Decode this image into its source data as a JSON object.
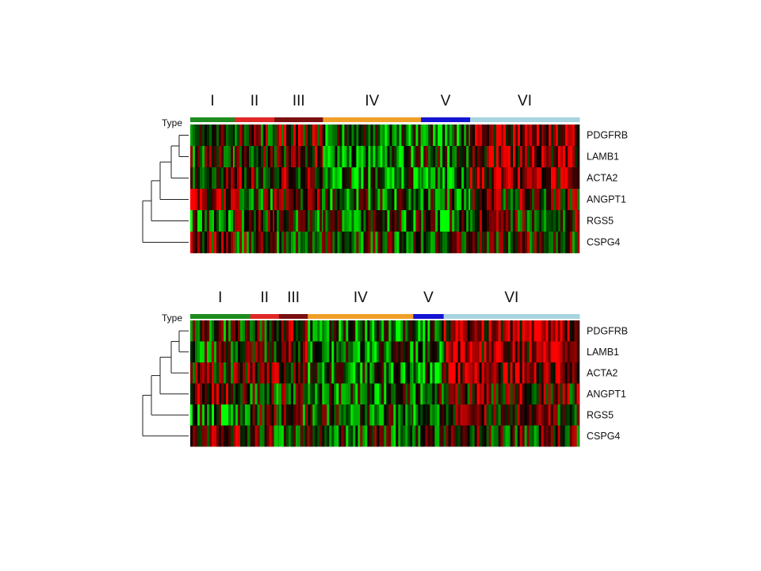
{
  "chart_data": [
    {
      "type": "heatmap",
      "type_label": "Type",
      "rows": [
        "PDGFRB",
        "LAMB1",
        "ACTA2",
        "ANGPT1",
        "RGS5",
        "CSPG4"
      ],
      "groups": [
        {
          "label": "I",
          "color": "#1e8c1e",
          "fraction": 0.114
        },
        {
          "label": "II",
          "color": "#e02828",
          "fraction": 0.102
        },
        {
          "label": "III",
          "color": "#7a1010",
          "fraction": 0.125
        },
        {
          "label": "IV",
          "color": "#f0a028",
          "fraction": 0.252
        },
        {
          "label": "V",
          "color": "#1414d2",
          "fraction": 0.126
        },
        {
          "label": "VI",
          "color": "#a8d4e0",
          "fraction": 0.281
        }
      ],
      "color_scale": {
        "low": "#00ff00",
        "mid": "#000000",
        "high": "#ff0000"
      },
      "dendrogram": "rows"
    },
    {
      "type": "heatmap",
      "type_label": "Type",
      "rows": [
        "PDGFRB",
        "LAMB1",
        "ACTA2",
        "ANGPT1",
        "RGS5",
        "CSPG4"
      ],
      "groups": [
        {
          "label": "I",
          "color": "#1e8c1e",
          "fraction": 0.154
        },
        {
          "label": "II",
          "color": "#e02828",
          "fraction": 0.074
        },
        {
          "label": "III",
          "color": "#7a1010",
          "fraction": 0.074
        },
        {
          "label": "IV",
          "color": "#f0a028",
          "fraction": 0.271
        },
        {
          "label": "V",
          "color": "#1414d2",
          "fraction": 0.078
        },
        {
          "label": "VI",
          "color": "#a8d4e0",
          "fraction": 0.349
        }
      ],
      "color_scale": {
        "low": "#00ff00",
        "mid": "#000000",
        "high": "#ff0000"
      },
      "dendrogram": "rows"
    }
  ]
}
